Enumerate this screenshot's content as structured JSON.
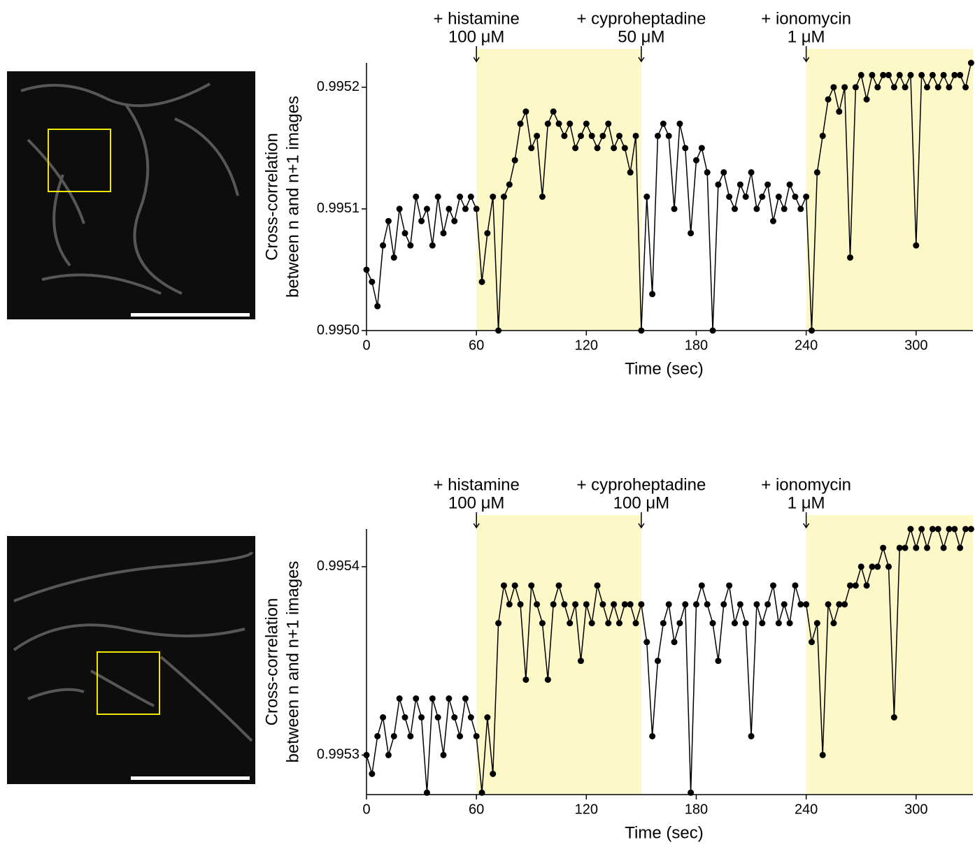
{
  "chart_data": [
    {
      "type": "line",
      "xlabel": "Time (sec)",
      "ylabel": [
        "Cross-correlation",
        "between n and n+1 images"
      ],
      "color": "#000000",
      "shade_color": "#fcf8c8",
      "shaded": [
        [
          60,
          150
        ],
        [
          240,
          331
        ]
      ],
      "annotations": [
        {
          "x": 60,
          "label": "+ histamine",
          "dose": "100 μM"
        },
        {
          "x": 150,
          "label": "+ cyproheptadine",
          "dose": "50 μM"
        },
        {
          "x": 240,
          "label": "+ ionomycin",
          "dose": "1 μM"
        }
      ],
      "xlim": [
        0,
        331
      ],
      "ylim": [
        0.995,
        0.99522
      ],
      "xticks": [
        0,
        60,
        120,
        180,
        240,
        300
      ],
      "yticks": [
        {
          "value": 0.995,
          "label": "0.9950"
        },
        0.9951,
        0.9952
      ],
      "x": [
        0,
        3,
        6,
        9,
        12,
        15,
        18,
        21,
        24,
        27,
        30,
        33,
        36,
        39,
        42,
        45,
        48,
        51,
        54,
        57,
        60,
        63,
        66,
        69,
        72,
        75,
        78,
        81,
        84,
        87,
        90,
        93,
        96,
        99,
        102,
        105,
        108,
        111,
        114,
        117,
        120,
        123,
        126,
        129,
        132,
        135,
        138,
        141,
        144,
        147,
        150,
        153,
        156,
        159,
        162,
        165,
        168,
        171,
        174,
        177,
        180,
        183,
        186,
        189,
        192,
        195,
        198,
        201,
        204,
        207,
        210,
        213,
        216,
        219,
        222,
        225,
        228,
        231,
        234,
        237,
        240,
        243,
        246,
        249,
        252,
        255,
        258,
        261,
        264,
        267,
        270,
        273,
        276,
        279,
        282,
        285,
        288,
        291,
        294,
        297,
        300,
        303,
        306,
        309,
        312,
        315,
        318,
        321,
        324,
        327,
        330
      ],
      "values": [
        0.99505,
        0.99504,
        0.99502,
        0.99507,
        0.99509,
        0.99506,
        0.9951,
        0.99508,
        0.99507,
        0.99511,
        0.99509,
        0.9951,
        0.99507,
        0.99511,
        0.99508,
        0.9951,
        0.99509,
        0.99511,
        0.9951,
        0.99511,
        0.9951,
        0.99504,
        0.99508,
        0.99511,
        0.995,
        0.99511,
        0.99512,
        0.99514,
        0.99517,
        0.99518,
        0.99515,
        0.99516,
        0.99511,
        0.99517,
        0.99518,
        0.99517,
        0.99516,
        0.99517,
        0.99515,
        0.99516,
        0.99517,
        0.99516,
        0.99515,
        0.99516,
        0.99517,
        0.99515,
        0.99516,
        0.99515,
        0.99513,
        0.99516,
        0.995,
        0.99511,
        0.99503,
        0.99516,
        0.99517,
        0.99516,
        0.9951,
        0.99517,
        0.99515,
        0.99508,
        0.99514,
        0.99515,
        0.99513,
        0.995,
        0.99512,
        0.99513,
        0.99511,
        0.9951,
        0.99512,
        0.99511,
        0.99513,
        0.9951,
        0.99511,
        0.99512,
        0.99509,
        0.99511,
        0.9951,
        0.99512,
        0.99511,
        0.9951,
        0.99511,
        0.995,
        0.99513,
        0.99516,
        0.99519,
        0.9952,
        0.99518,
        0.9952,
        0.99506,
        0.9952,
        0.99521,
        0.99519,
        0.99521,
        0.9952,
        0.99521,
        0.99521,
        0.9952,
        0.99521,
        0.9952,
        0.99521,
        0.99507,
        0.99521,
        0.9952,
        0.99521,
        0.9952,
        0.99521,
        0.9952,
        0.99521,
        0.99521,
        0.9952,
        0.99522
      ]
    },
    {
      "type": "line",
      "xlabel": "Time (sec)",
      "ylabel": [
        "Cross-correlation",
        "between n and n+1 images"
      ],
      "color": "#000000",
      "shade_color": "#fcf8c8",
      "shaded": [
        [
          60,
          150
        ],
        [
          240,
          331
        ]
      ],
      "annotations": [
        {
          "x": 60,
          "label": "+ histamine",
          "dose": "100 μM"
        },
        {
          "x": 150,
          "label": "+ cyproheptadine",
          "dose": "100 μM"
        },
        {
          "x": 240,
          "label": "+ ionomycin",
          "dose": "1 μM"
        }
      ],
      "xlim": [
        0,
        331
      ],
      "ylim": [
        0.995279,
        0.99542
      ],
      "xticks": [
        0,
        60,
        120,
        180,
        240,
        300
      ],
      "yticks": [
        0.9953,
        0.9954
      ],
      "x": [
        0,
        3,
        6,
        9,
        12,
        15,
        18,
        21,
        24,
        27,
        30,
        33,
        36,
        39,
        42,
        45,
        48,
        51,
        54,
        57,
        60,
        63,
        66,
        69,
        72,
        75,
        78,
        81,
        84,
        87,
        90,
        93,
        96,
        99,
        102,
        105,
        108,
        111,
        114,
        117,
        120,
        123,
        126,
        129,
        132,
        135,
        138,
        141,
        144,
        147,
        150,
        153,
        156,
        159,
        162,
        165,
        168,
        171,
        174,
        177,
        180,
        183,
        186,
        189,
        192,
        195,
        198,
        201,
        204,
        207,
        210,
        213,
        216,
        219,
        222,
        225,
        228,
        231,
        234,
        237,
        240,
        243,
        246,
        249,
        252,
        255,
        258,
        261,
        264,
        267,
        270,
        273,
        276,
        279,
        282,
        285,
        288,
        291,
        294,
        297,
        300,
        303,
        306,
        309,
        312,
        315,
        318,
        321,
        324,
        327,
        330
      ],
      "values": [
        0.9953,
        0.99529,
        0.99531,
        0.99532,
        0.9953,
        0.99531,
        0.99533,
        0.99532,
        0.99531,
        0.99533,
        0.99532,
        0.99528,
        0.99533,
        0.99532,
        0.9953,
        0.99533,
        0.99532,
        0.99531,
        0.99533,
        0.99532,
        0.99531,
        0.99528,
        0.99532,
        0.99529,
        0.99537,
        0.99539,
        0.99538,
        0.99539,
        0.99538,
        0.99534,
        0.99539,
        0.99538,
        0.99537,
        0.99534,
        0.99538,
        0.99539,
        0.99538,
        0.99537,
        0.99538,
        0.99535,
        0.99538,
        0.99537,
        0.99539,
        0.99538,
        0.99537,
        0.99538,
        0.99537,
        0.99538,
        0.99538,
        0.99537,
        0.99538,
        0.99536,
        0.99531,
        0.99535,
        0.99537,
        0.99538,
        0.99536,
        0.99537,
        0.99538,
        0.99528,
        0.99538,
        0.99539,
        0.99538,
        0.99537,
        0.99535,
        0.99538,
        0.99539,
        0.99537,
        0.99538,
        0.99537,
        0.99531,
        0.99538,
        0.99537,
        0.99538,
        0.99539,
        0.99537,
        0.99538,
        0.99537,
        0.99539,
        0.99538,
        0.99538,
        0.99536,
        0.99537,
        0.9953,
        0.99538,
        0.99537,
        0.99538,
        0.99538,
        0.99539,
        0.99539,
        0.9954,
        0.99539,
        0.9954,
        0.9954,
        0.99541,
        0.9954,
        0.99532,
        0.99541,
        0.99541,
        0.99542,
        0.99541,
        0.99542,
        0.99541,
        0.99542,
        0.99542,
        0.99541,
        0.99542,
        0.99542,
        0.99541,
        0.99542,
        0.99542
      ]
    }
  ]
}
